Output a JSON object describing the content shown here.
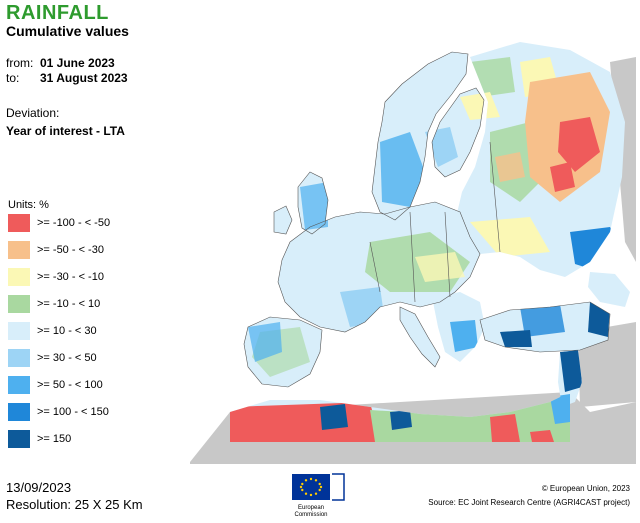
{
  "header": {
    "title": "RAINFALL",
    "subtitle": "Cumulative values",
    "from_label": "from:",
    "from_value": "01 June 2023",
    "to_label": "to:",
    "to_value": "31 August 2023",
    "deviation_label": "Deviation:",
    "deviation_value": "Year of interest - LTA"
  },
  "legend": {
    "units": "Units: %",
    "items": [
      {
        "label": ">= -100 - < -50",
        "color": "#ef5b5b"
      },
      {
        "label": ">= -50 - < -30",
        "color": "#f7c08b"
      },
      {
        "label": ">= -30 - < -10",
        "color": "#fbf8b5"
      },
      {
        "label": ">= -10 - < 10",
        "color": "#a9d8a0"
      },
      {
        "label": ">= 10 - < 30",
        "color": "#d8eefa"
      },
      {
        "label": ">= 30 - < 50",
        "color": "#9dd4f5"
      },
      {
        "label": ">= 50 - < 100",
        "color": "#4eb0ef"
      },
      {
        "label": ">= 100 - < 150",
        "color": "#1f87d9"
      },
      {
        "label": ">= 150",
        "color": "#0d5a9a"
      }
    ]
  },
  "footer": {
    "date": "13/09/2023",
    "resolution": "Resolution: 25 X 25 Km",
    "copyright": "© European Union, 2023",
    "source": "Source: EC Joint Research Centre (AGRI4CAST project)",
    "logo_text_1": "European",
    "logo_text_2": "Commission"
  },
  "colors": {
    "title": "#2e9b2e",
    "land_background": "#c8c8c8",
    "sea": "#ffffff",
    "eu_blue": "#003399",
    "eu_star": "#ffcc00"
  }
}
